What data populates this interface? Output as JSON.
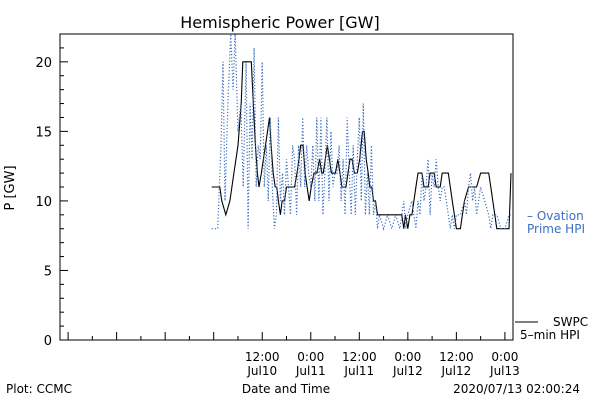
{
  "chart_data": {
    "type": "line",
    "title": "Hemispheric Power [GW]",
    "xlabel": "Date and Time",
    "ylabel": "P [GW]",
    "ylim": [
      0,
      22
    ],
    "xlim": [
      -38,
      74
    ],
    "x_unit": "hours from 2020-07-10 00:00 UT",
    "grid": false,
    "y_ticks": [
      0,
      5,
      10,
      15,
      20
    ],
    "x_ticks": [
      {
        "x": 12,
        "line1": "12:00",
        "line2": "Jul10"
      },
      {
        "x": 24,
        "line1": "0:00",
        "line2": "Jul11"
      },
      {
        "x": 36,
        "line1": "12:00",
        "line2": "Jul11"
      },
      {
        "x": 48,
        "line1": "0:00",
        "line2": "Jul12"
      },
      {
        "x": 60,
        "line1": "12:00",
        "line2": "Jul12"
      },
      {
        "x": 72,
        "line1": "0:00",
        "line2": "Jul13"
      }
    ],
    "series": [
      {
        "name": "SWPC 5-min HPI",
        "color": "#000000",
        "style": "solid",
        "points": [
          [
            -0.5,
            11
          ],
          [
            1.5,
            11
          ],
          [
            2,
            10
          ],
          [
            3,
            9
          ],
          [
            4,
            10
          ],
          [
            5,
            12
          ],
          [
            6,
            14
          ],
          [
            6.8,
            17
          ],
          [
            7.2,
            20
          ],
          [
            9.3,
            20
          ],
          [
            9.8,
            17
          ],
          [
            10.3,
            14
          ],
          [
            10.8,
            12
          ],
          [
            11.2,
            11
          ],
          [
            11.8,
            12
          ],
          [
            12.3,
            13
          ],
          [
            12.8,
            14
          ],
          [
            13.3,
            15
          ],
          [
            13.8,
            16
          ],
          [
            14.2,
            14
          ],
          [
            14.7,
            12
          ],
          [
            15.2,
            11
          ],
          [
            15.6,
            11
          ],
          [
            16,
            10
          ],
          [
            16.5,
            9
          ],
          [
            16.9,
            10
          ],
          [
            17.5,
            10
          ],
          [
            18,
            11
          ],
          [
            19,
            11
          ],
          [
            20,
            11
          ],
          [
            20.6,
            12
          ],
          [
            21.1,
            13
          ],
          [
            21.5,
            14
          ],
          [
            22.1,
            14
          ],
          [
            22.6,
            12
          ],
          [
            23.1,
            11
          ],
          [
            23.6,
            10
          ],
          [
            24.1,
            11
          ],
          [
            24.8,
            12
          ],
          [
            25.5,
            12
          ],
          [
            26.2,
            13
          ],
          [
            26.7,
            12
          ],
          [
            27.1,
            12
          ],
          [
            27.6,
            13
          ],
          [
            28.1,
            14
          ],
          [
            28.6,
            13
          ],
          [
            29.1,
            12
          ],
          [
            30.1,
            12
          ],
          [
            30.7,
            13
          ],
          [
            31.2,
            12
          ],
          [
            31.7,
            11
          ],
          [
            32.7,
            11
          ],
          [
            33.2,
            12
          ],
          [
            33.7,
            13
          ],
          [
            34.2,
            13
          ],
          [
            34.8,
            12
          ],
          [
            35.5,
            12
          ],
          [
            36.1,
            13
          ],
          [
            36.8,
            15
          ],
          [
            37.2,
            15
          ],
          [
            37.7,
            13
          ],
          [
            38.2,
            12
          ],
          [
            38.6,
            11
          ],
          [
            39.1,
            11
          ],
          [
            39.5,
            10
          ],
          [
            40,
            10
          ],
          [
            40.5,
            9
          ],
          [
            41.2,
            9
          ],
          [
            41.6,
            9
          ],
          [
            42.1,
            9
          ],
          [
            45,
            9
          ],
          [
            46,
            9
          ],
          [
            46.5,
            9
          ],
          [
            47,
            8
          ],
          [
            47.4,
            9
          ],
          [
            48,
            8
          ],
          [
            48.5,
            9
          ],
          [
            49,
            9
          ],
          [
            49.5,
            10
          ],
          [
            50,
            11
          ],
          [
            50.5,
            12
          ],
          [
            51,
            12
          ],
          [
            51.5,
            12
          ],
          [
            52,
            11
          ],
          [
            52.5,
            11
          ],
          [
            53,
            11
          ],
          [
            53.5,
            12
          ],
          [
            54,
            12
          ],
          [
            54.5,
            12
          ],
          [
            55,
            11
          ],
          [
            55.5,
            11
          ],
          [
            56,
            11
          ],
          [
            56.5,
            12
          ],
          [
            57,
            12
          ],
          [
            58,
            12
          ],
          [
            58.5,
            11
          ],
          [
            59,
            10
          ],
          [
            59.5,
            9
          ],
          [
            60,
            8
          ],
          [
            61,
            8
          ],
          [
            61.5,
            9
          ],
          [
            62,
            10
          ],
          [
            63,
            11
          ],
          [
            64,
            11
          ],
          [
            64.5,
            11
          ],
          [
            65,
            11
          ],
          [
            66,
            12
          ],
          [
            67,
            12
          ],
          [
            68,
            12
          ],
          [
            68.5,
            11
          ],
          [
            69,
            10
          ],
          [
            69.5,
            9
          ],
          [
            70,
            8
          ],
          [
            73,
            8
          ],
          [
            73.5,
            12
          ]
        ]
      },
      {
        "name": "Ovation Prime HPI",
        "color": "#3a6fc0",
        "style": "dotted",
        "points": [
          [
            -0.5,
            8
          ],
          [
            1,
            8
          ],
          [
            1.8,
            14
          ],
          [
            2.3,
            20
          ],
          [
            2.8,
            10
          ],
          [
            3.5,
            17
          ],
          [
            4.2,
            22
          ],
          [
            4.8,
            18
          ],
          [
            5.3,
            22
          ],
          [
            6,
            15
          ],
          [
            6.7,
            17
          ],
          [
            7.3,
            11
          ],
          [
            8,
            20
          ],
          [
            8.5,
            8
          ],
          [
            9,
            17
          ],
          [
            9.5,
            13
          ],
          [
            10,
            21
          ],
          [
            10.5,
            11
          ],
          [
            11,
            14
          ],
          [
            11.5,
            13
          ],
          [
            12,
            20
          ],
          [
            12.5,
            11
          ],
          [
            13,
            14
          ],
          [
            13.5,
            10
          ],
          [
            14,
            16
          ],
          [
            14.5,
            11
          ],
          [
            15,
            8
          ],
          [
            15.5,
            9
          ],
          [
            16,
            16
          ],
          [
            16.5,
            10
          ],
          [
            17,
            12
          ],
          [
            17.5,
            9
          ],
          [
            18,
            13
          ],
          [
            18.5,
            11
          ],
          [
            19,
            9
          ],
          [
            19.5,
            14
          ],
          [
            20,
            13
          ],
          [
            20.5,
            9
          ],
          [
            21,
            14
          ],
          [
            21.5,
            11
          ],
          [
            22,
            16
          ],
          [
            22.5,
            11
          ],
          [
            23,
            14
          ],
          [
            23.5,
            12
          ],
          [
            24,
            11
          ],
          [
            24.5,
            14
          ],
          [
            25,
            10
          ],
          [
            25.5,
            16
          ],
          [
            26,
            10
          ],
          [
            26.5,
            16
          ],
          [
            27,
            9
          ],
          [
            27.5,
            12
          ],
          [
            28,
            16
          ],
          [
            28.5,
            10
          ],
          [
            29,
            15
          ],
          [
            29.5,
            11
          ],
          [
            30,
            12
          ],
          [
            30.5,
            12
          ],
          [
            31,
            14
          ],
          [
            31.5,
            10
          ],
          [
            32,
            13
          ],
          [
            32.5,
            9
          ],
          [
            33,
            16
          ],
          [
            33.5,
            12
          ],
          [
            34,
            9
          ],
          [
            34.5,
            14
          ],
          [
            35,
            9
          ],
          [
            35.5,
            13
          ],
          [
            36,
            16
          ],
          [
            36.5,
            10
          ],
          [
            37,
            17
          ],
          [
            37.5,
            9
          ],
          [
            38,
            12
          ],
          [
            38.5,
            9
          ],
          [
            39,
            14
          ],
          [
            39.5,
            9
          ],
          [
            40,
            10
          ],
          [
            40.5,
            8
          ],
          [
            41,
            9
          ],
          [
            42,
            8
          ],
          [
            43,
            9
          ],
          [
            44,
            8
          ],
          [
            45,
            9
          ],
          [
            46,
            8
          ],
          [
            47,
            10
          ],
          [
            47.5,
            8
          ],
          [
            48,
            9
          ],
          [
            49,
            10
          ],
          [
            49.5,
            9
          ],
          [
            50,
            8
          ],
          [
            50.5,
            10
          ],
          [
            51,
            9
          ],
          [
            51.5,
            12
          ],
          [
            52,
            10
          ],
          [
            52.5,
            11
          ],
          [
            53,
            13
          ],
          [
            53.5,
            9
          ],
          [
            54,
            12
          ],
          [
            54.5,
            11
          ],
          [
            55,
            13
          ],
          [
            55.5,
            11
          ],
          [
            56,
            10
          ],
          [
            56.5,
            11
          ],
          [
            57,
            11
          ],
          [
            57.5,
            10
          ],
          [
            58,
            9
          ],
          [
            58.5,
            8
          ],
          [
            59,
            9
          ],
          [
            59.5,
            8
          ],
          [
            60,
            9
          ],
          [
            61,
            9
          ],
          [
            62,
            10
          ],
          [
            62.5,
            9
          ],
          [
            63,
            11
          ],
          [
            63.5,
            12
          ],
          [
            64,
            10
          ],
          [
            64.5,
            11
          ],
          [
            65,
            9
          ],
          [
            65.5,
            10
          ],
          [
            66,
            11
          ],
          [
            67,
            10
          ],
          [
            68,
            9
          ],
          [
            68.5,
            8
          ],
          [
            69,
            9
          ],
          [
            70,
            9
          ],
          [
            71,
            8
          ],
          [
            72,
            8
          ],
          [
            73,
            9
          ],
          [
            73.5,
            9
          ]
        ]
      }
    ],
    "legend": [
      {
        "text": "– Ovation",
        "text2": "Prime HPI",
        "color": "#3a6fc0"
      },
      {
        "text": "SWPC",
        "text2": "5–min HPI",
        "color": "#000000"
      }
    ],
    "footer_left": "Plot: CCMC",
    "footer_right": "2020/07/13 02:00:24"
  }
}
